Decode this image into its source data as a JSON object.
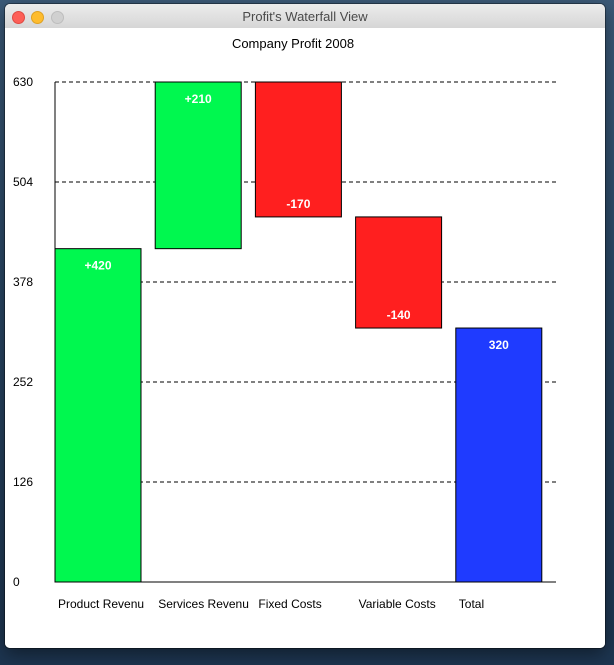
{
  "window": {
    "title": "Profit's Waterfall View"
  },
  "chart_data": {
    "type": "waterfall",
    "title": "Company Profit 2008",
    "ylim": [
      0,
      630
    ],
    "y_ticks": [
      0,
      126,
      252,
      378,
      504,
      630
    ],
    "grid": true,
    "categories": [
      "Product Revenue",
      "Services Revenue",
      "Fixed Costs",
      "Variable Costs",
      "Total"
    ],
    "category_labels_shown": [
      "Product Revenu",
      "Services Revenu",
      "Fixed Costs",
      "Variable Costs",
      "Total"
    ],
    "bars": [
      {
        "category": "Product Revenue",
        "start": 0,
        "end": 420,
        "label": "+420",
        "kind": "increase"
      },
      {
        "category": "Services Revenue",
        "start": 420,
        "end": 630,
        "label": "+210",
        "kind": "increase"
      },
      {
        "category": "Fixed Costs",
        "start": 630,
        "end": 460,
        "label": "-170",
        "kind": "decrease"
      },
      {
        "category": "Variable Costs",
        "start": 460,
        "end": 320,
        "label": "-140",
        "kind": "decrease"
      },
      {
        "category": "Total",
        "start": 0,
        "end": 320,
        "label": "320",
        "kind": "total"
      }
    ],
    "colors": {
      "increase": "#00f84f",
      "decrease": "#ff1f1f",
      "total": "#1f3bff"
    }
  }
}
